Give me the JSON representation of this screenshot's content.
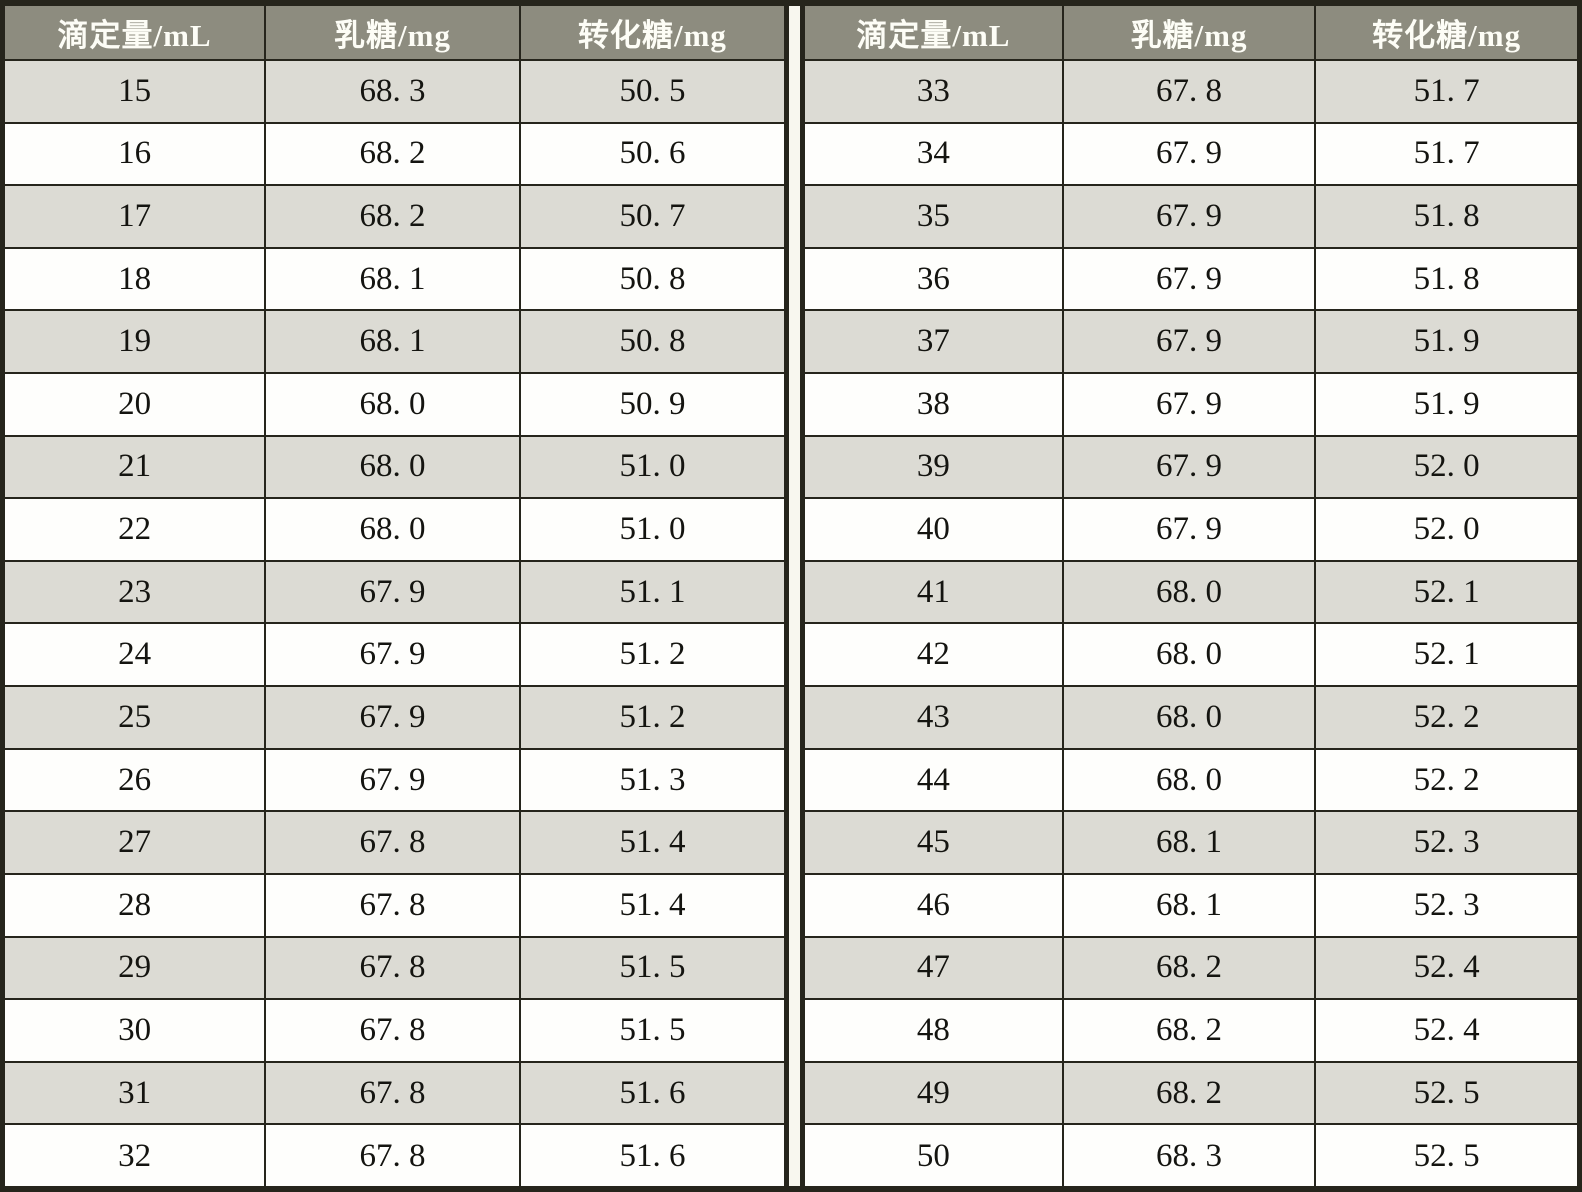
{
  "table": {
    "headers": [
      "滴定量/mL",
      "乳糖/mg",
      "转化糖/mg"
    ],
    "left_rows": [
      [
        "15",
        "68. 3",
        "50. 5"
      ],
      [
        "16",
        "68. 2",
        "50. 6"
      ],
      [
        "17",
        "68. 2",
        "50. 7"
      ],
      [
        "18",
        "68. 1",
        "50. 8"
      ],
      [
        "19",
        "68. 1",
        "50. 8"
      ],
      [
        "20",
        "68. 0",
        "50. 9"
      ],
      [
        "21",
        "68. 0",
        "51. 0"
      ],
      [
        "22",
        "68. 0",
        "51. 0"
      ],
      [
        "23",
        "67. 9",
        "51. 1"
      ],
      [
        "24",
        "67. 9",
        "51. 2"
      ],
      [
        "25",
        "67. 9",
        "51. 2"
      ],
      [
        "26",
        "67. 9",
        "51. 3"
      ],
      [
        "27",
        "67. 8",
        "51. 4"
      ],
      [
        "28",
        "67. 8",
        "51. 4"
      ],
      [
        "29",
        "67. 8",
        "51. 5"
      ],
      [
        "30",
        "67. 8",
        "51. 5"
      ],
      [
        "31",
        "67. 8",
        "51. 6"
      ],
      [
        "32",
        "67. 8",
        "51. 6"
      ]
    ],
    "right_rows": [
      [
        "33",
        "67. 8",
        "51. 7"
      ],
      [
        "34",
        "67. 9",
        "51. 7"
      ],
      [
        "35",
        "67. 9",
        "51. 8"
      ],
      [
        "36",
        "67. 9",
        "51. 8"
      ],
      [
        "37",
        "67. 9",
        "51. 9"
      ],
      [
        "38",
        "67. 9",
        "51. 9"
      ],
      [
        "39",
        "67. 9",
        "52. 0"
      ],
      [
        "40",
        "67. 9",
        "52. 0"
      ],
      [
        "41",
        "68. 0",
        "52. 1"
      ],
      [
        "42",
        "68. 0",
        "52. 1"
      ],
      [
        "43",
        "68. 0",
        "52. 2"
      ],
      [
        "44",
        "68. 0",
        "52. 2"
      ],
      [
        "45",
        "68. 1",
        "52. 3"
      ],
      [
        "46",
        "68. 1",
        "52. 3"
      ],
      [
        "47",
        "68. 2",
        "52. 4"
      ],
      [
        "48",
        "68. 2",
        "52. 4"
      ],
      [
        "49",
        "68. 2",
        "52. 5"
      ],
      [
        "50",
        "68. 3",
        "52. 5"
      ]
    ]
  },
  "colors": {
    "header_bg": "#8d8c7f",
    "header_text": "#fdfdf6",
    "row_shaded": "#dcdbd4",
    "row_plain": "#fefefc",
    "border": "#26251c",
    "page_gap": "#f8f7ef"
  }
}
